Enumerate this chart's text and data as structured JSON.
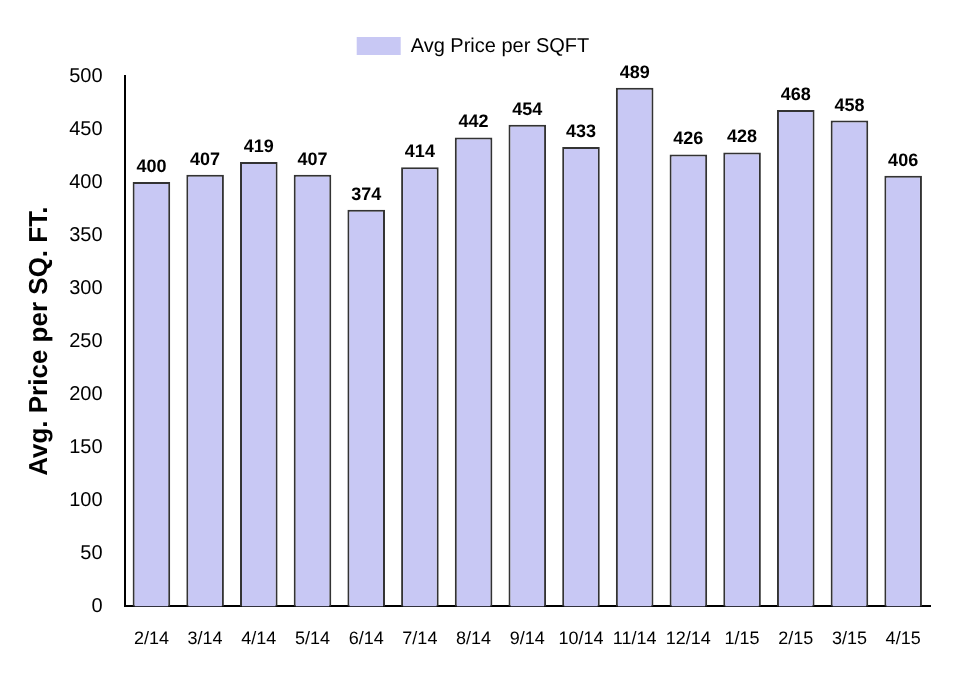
{
  "chart_data": {
    "type": "bar",
    "ylabel": "Avg. Price per SQ. FT.",
    "categories": [
      "2/14",
      "3/14",
      "4/14",
      "5/14",
      "6/14",
      "7/14",
      "8/14",
      "9/14",
      "10/14",
      "11/14",
      "12/14",
      "1/15",
      "2/15",
      "3/15",
      "4/15"
    ],
    "series": [
      {
        "name": "Avg Price per SQFT",
        "color": "#c8c8f4",
        "values": [
          400,
          407,
          419,
          407,
          374,
          414,
          442,
          454,
          433,
          489,
          426,
          428,
          468,
          458,
          406
        ]
      }
    ],
    "ylim": [
      0,
      500
    ],
    "yticks": [
      0,
      50,
      100,
      150,
      200,
      250,
      300,
      350,
      400,
      450,
      500
    ],
    "grid": false,
    "legend": "top",
    "data_labels": true
  }
}
